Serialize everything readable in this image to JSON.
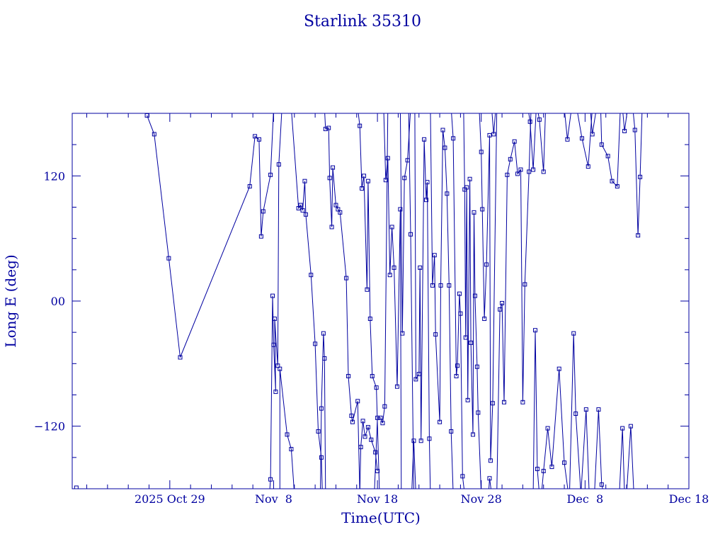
{
  "chart_data": {
    "type": "line",
    "title": "Starlink 35310",
    "xlabel": "Time(UTC)",
    "ylabel": "Long E (deg)",
    "x_ticks": [
      {
        "value": 0,
        "label": "2025 Oct 29"
      },
      {
        "value": 10,
        "label": "Nov  8"
      },
      {
        "value": 20,
        "label": "Nov 18"
      },
      {
        "value": 30,
        "label": "Nov 28"
      },
      {
        "value": 40,
        "label": "Dec  8"
      },
      {
        "value": 50,
        "label": "Dec 18"
      }
    ],
    "y_ticks": [
      {
        "value": 120,
        "label": "120"
      },
      {
        "value": 0,
        "label": "00"
      },
      {
        "value": -120,
        "label": "−120"
      }
    ],
    "xlim": [
      -9.4,
      50
    ],
    "ylim": [
      -180,
      180
    ],
    "color": "#0000a0",
    "grid": false,
    "series": [
      {
        "points": [
          [
            -2.2,
            178
          ],
          [
            -1.5,
            160
          ],
          [
            -0.1,
            41
          ],
          [
            1.0,
            -54
          ],
          [
            7.7,
            110
          ],
          [
            8.2,
            158
          ],
          [
            8.6,
            155
          ],
          [
            8.8,
            62
          ],
          [
            9.0,
            86
          ],
          [
            9.7,
            121
          ],
          [
            10.0,
            185
          ]
        ]
      },
      {
        "points": [
          [
            9.6,
            -185
          ],
          [
            9.7,
            -171
          ],
          [
            9.9,
            5
          ],
          [
            10.0,
            -42
          ],
          [
            10.2,
            -87
          ],
          [
            10.1,
            -17
          ],
          [
            10.4,
            -62
          ],
          [
            10.5,
            131
          ],
          [
            10.8,
            185
          ]
        ]
      },
      {
        "points": [
          [
            10.6,
            -185
          ],
          [
            10.6,
            -65
          ],
          [
            11.3,
            -128
          ],
          [
            11.7,
            -142
          ],
          [
            12.0,
            -185
          ]
        ]
      },
      {
        "points": [
          [
            11.7,
            185
          ],
          [
            12.4,
            89
          ],
          [
            12.6,
            92
          ],
          [
            12.8,
            87
          ],
          [
            13.0,
            115
          ],
          [
            13.1,
            83
          ],
          [
            13.6,
            25
          ],
          [
            14.0,
            -41
          ],
          [
            14.3,
            -125
          ],
          [
            14.6,
            -150
          ],
          [
            14.7,
            -185
          ]
        ]
      },
      {
        "points": [
          [
            14.5,
            -185
          ],
          [
            14.6,
            -103
          ],
          [
            14.8,
            -31
          ],
          [
            14.9,
            -55
          ],
          [
            15.0,
            -185
          ]
        ]
      },
      {
        "points": [
          [
            14.9,
            185
          ],
          [
            15.0,
            165
          ],
          [
            15.3,
            166
          ],
          [
            15.4,
            118
          ],
          [
            15.6,
            71
          ],
          [
            15.7,
            128
          ],
          [
            16.0,
            92
          ],
          [
            16.2,
            88
          ],
          [
            16.4,
            85
          ],
          [
            17.0,
            22
          ],
          [
            17.2,
            -72
          ],
          [
            17.5,
            -110
          ],
          [
            17.6,
            -116
          ],
          [
            18.1,
            -96
          ],
          [
            18.3,
            -185
          ]
        ]
      },
      {
        "points": [
          [
            18.1,
            185
          ],
          [
            18.3,
            168
          ],
          [
            18.5,
            108
          ],
          [
            18.7,
            120
          ],
          [
            19.0,
            11
          ],
          [
            19.1,
            115
          ],
          [
            19.3,
            -17
          ],
          [
            19.5,
            -72
          ],
          [
            19.9,
            -83
          ],
          [
            20.2,
            -185
          ]
        ]
      },
      {
        "points": [
          [
            18.3,
            -185
          ],
          [
            18.4,
            -140
          ],
          [
            18.6,
            -115
          ],
          [
            18.8,
            -130
          ],
          [
            19.1,
            -121
          ],
          [
            19.4,
            -133
          ],
          [
            19.8,
            -145
          ],
          [
            20.0,
            -163
          ]
        ]
      },
      {
        "points": [
          [
            19.7,
            -185
          ],
          [
            20.0,
            -112
          ],
          [
            20.3,
            -112
          ],
          [
            20.5,
            -117
          ],
          [
            20.7,
            -101
          ],
          [
            21.0,
            185
          ]
        ]
      },
      {
        "points": [
          [
            20.6,
            185
          ],
          [
            20.8,
            116
          ],
          [
            21.0,
            137
          ],
          [
            21.2,
            25
          ],
          [
            21.4,
            71
          ],
          [
            21.6,
            32
          ],
          [
            21.9,
            -82
          ],
          [
            22.2,
            88
          ],
          [
            22.3,
            -185
          ]
        ]
      },
      {
        "points": [
          [
            22.2,
            185
          ],
          [
            22.4,
            -31
          ],
          [
            22.6,
            118
          ],
          [
            22.9,
            135
          ],
          [
            23.2,
            185
          ]
        ]
      },
      {
        "points": [
          [
            23.0,
            185
          ],
          [
            23.2,
            64
          ],
          [
            23.5,
            -185
          ]
        ]
      },
      {
        "points": [
          [
            23.3,
            -185
          ],
          [
            23.5,
            -134
          ],
          [
            23.7,
            -185
          ]
        ]
      },
      {
        "points": [
          [
            23.6,
            185
          ],
          [
            23.7,
            -75
          ],
          [
            24.0,
            -70
          ],
          [
            24.1,
            32
          ],
          [
            24.2,
            -134
          ],
          [
            24.5,
            155
          ],
          [
            24.7,
            97
          ],
          [
            24.8,
            114
          ],
          [
            25.0,
            -132
          ],
          [
            25.1,
            -185
          ]
        ]
      },
      {
        "points": [
          [
            25.1,
            185
          ],
          [
            25.3,
            15
          ],
          [
            25.5,
            44
          ],
          [
            25.6,
            -32
          ],
          [
            26.0,
            -116
          ],
          [
            26.1,
            15
          ],
          [
            26.3,
            164
          ],
          [
            26.5,
            147
          ],
          [
            26.7,
            103
          ],
          [
            26.9,
            15
          ],
          [
            27.1,
            -125
          ],
          [
            27.3,
            -185
          ]
        ]
      },
      {
        "points": [
          [
            27.1,
            185
          ],
          [
            27.3,
            156
          ],
          [
            27.6,
            -72
          ],
          [
            27.7,
            -62
          ],
          [
            27.9,
            7
          ],
          [
            28.0,
            -12
          ],
          [
            28.2,
            -168
          ],
          [
            28.4,
            -185
          ]
        ]
      },
      {
        "points": [
          [
            28.3,
            185
          ],
          [
            28.4,
            107
          ],
          [
            28.5,
            -35
          ],
          [
            28.6,
            109
          ],
          [
            28.7,
            -95
          ],
          [
            28.9,
            117
          ],
          [
            29.0,
            -40
          ],
          [
            29.2,
            -128
          ],
          [
            29.3,
            85
          ],
          [
            29.4,
            5
          ],
          [
            29.6,
            -63
          ],
          [
            29.7,
            -107
          ],
          [
            30.0,
            -185
          ]
        ]
      },
      {
        "points": [
          [
            29.8,
            185
          ],
          [
            30.0,
            143
          ],
          [
            30.1,
            88
          ],
          [
            30.3,
            -17
          ],
          [
            30.5,
            35
          ],
          [
            30.8,
            159
          ],
          [
            30.9,
            -153
          ],
          [
            31.1,
            -98
          ],
          [
            31.5,
            185
          ]
        ]
      },
      {
        "points": [
          [
            30.7,
            -185
          ],
          [
            30.8,
            -170
          ],
          [
            31.0,
            -185
          ]
        ]
      },
      {
        "points": [
          [
            31.0,
            185
          ],
          [
            31.2,
            160
          ],
          [
            31.4,
            185
          ]
        ]
      },
      {
        "points": [
          [
            31.5,
            -185
          ],
          [
            31.8,
            -8
          ],
          [
            32.0,
            -2
          ],
          [
            32.2,
            -97
          ],
          [
            32.5,
            121
          ],
          [
            32.8,
            136
          ],
          [
            33.2,
            153
          ],
          [
            33.5,
            122
          ],
          [
            33.8,
            126
          ],
          [
            34.0,
            -97
          ],
          [
            34.2,
            16
          ],
          [
            34.6,
            124
          ],
          [
            34.8,
            185
          ]
        ]
      },
      {
        "points": [
          [
            34.5,
            185
          ],
          [
            34.7,
            172
          ],
          [
            35.0,
            126
          ],
          [
            35.3,
            185
          ]
        ]
      },
      {
        "points": [
          [
            35.0,
            -185
          ],
          [
            35.2,
            -28
          ],
          [
            35.4,
            -161
          ],
          [
            35.6,
            -185
          ]
        ]
      },
      {
        "points": [
          [
            35.4,
            185
          ],
          [
            35.6,
            174
          ],
          [
            36.0,
            124
          ],
          [
            36.2,
            185
          ]
        ]
      },
      {
        "points": [
          [
            35.8,
            -185
          ],
          [
            36.0,
            -163
          ],
          [
            36.4,
            -122
          ],
          [
            36.8,
            -159
          ],
          [
            37.5,
            -65
          ],
          [
            38.0,
            -155
          ],
          [
            38.4,
            -185
          ]
        ]
      },
      {
        "points": [
          [
            38.0,
            185
          ],
          [
            38.3,
            155
          ],
          [
            38.7,
            185
          ]
        ]
      },
      {
        "points": [
          [
            38.5,
            -185
          ],
          [
            38.9,
            -31
          ],
          [
            39.1,
            -108
          ],
          [
            39.6,
            -185
          ]
        ]
      },
      {
        "points": [
          [
            39.2,
            185
          ],
          [
            39.7,
            156
          ],
          [
            40.3,
            129
          ],
          [
            40.7,
            185
          ]
        ]
      },
      {
        "points": [
          [
            39.6,
            -185
          ],
          [
            40.1,
            -104
          ],
          [
            40.4,
            -185
          ]
        ]
      },
      {
        "points": [
          [
            40.5,
            185
          ],
          [
            40.7,
            160
          ],
          [
            41.1,
            185
          ]
        ]
      },
      {
        "points": [
          [
            40.9,
            -185
          ],
          [
            41.3,
            -104
          ],
          [
            41.6,
            -176
          ],
          [
            41.8,
            -185
          ]
        ]
      },
      {
        "points": [
          [
            41.5,
            185
          ],
          [
            41.6,
            150
          ],
          [
            42.2,
            139
          ],
          [
            42.6,
            115
          ],
          [
            43.1,
            110
          ],
          [
            43.4,
            185
          ]
        ]
      },
      {
        "points": [
          [
            43.3,
            -185
          ],
          [
            43.6,
            -122
          ],
          [
            43.8,
            -185
          ]
        ]
      },
      {
        "points": [
          [
            43.6,
            185
          ],
          [
            43.8,
            163
          ],
          [
            44.1,
            185
          ]
        ]
      },
      {
        "points": [
          [
            44.0,
            -185
          ],
          [
            44.4,
            -120
          ],
          [
            44.7,
            -185
          ]
        ]
      },
      {
        "points": [
          [
            44.6,
            185
          ],
          [
            44.8,
            164
          ],
          [
            45.1,
            63
          ],
          [
            45.3,
            119
          ],
          [
            45.5,
            185
          ]
        ]
      }
    ],
    "orphan_points": [
      [
        -9.0,
        -179
      ]
    ]
  }
}
